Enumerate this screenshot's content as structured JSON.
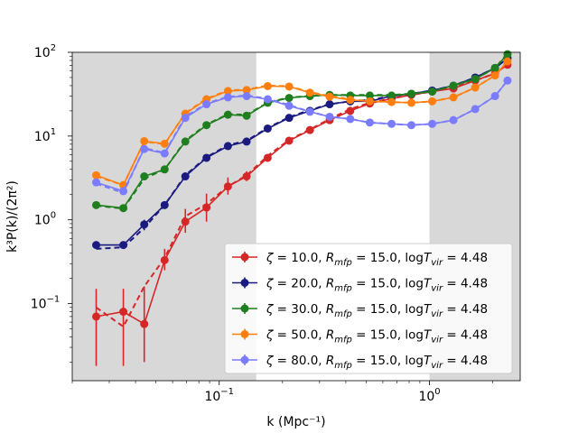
{
  "chart_data": {
    "type": "line",
    "title": "",
    "xlabel": "k (Mpc⁻¹)",
    "ylabel": "k³P(k)/(2π²)",
    "xscale": "log",
    "yscale": "log",
    "xlim": [
      0.02,
      2.7
    ],
    "ylim": [
      0.012,
      100
    ],
    "shaded_regions": [
      [
        0.02,
        0.15
      ],
      [
        1.0,
        2.7
      ]
    ],
    "x_ticks": [
      {
        "value": 0.1,
        "base": "10",
        "exp": "−1"
      },
      {
        "value": 1,
        "base": "10",
        "exp": "0"
      }
    ],
    "y_ticks": [
      {
        "value": 0.1,
        "base": "10",
        "exp": "−1"
      },
      {
        "value": 1,
        "base": "10",
        "exp": "0"
      },
      {
        "value": 10,
        "base": "10",
        "exp": "1"
      },
      {
        "value": 100,
        "base": "10",
        "exp": "2"
      }
    ],
    "x": [
      0.026,
      0.035,
      0.044,
      0.055,
      0.069,
      0.087,
      0.11,
      0.135,
      0.17,
      0.215,
      0.27,
      0.335,
      0.42,
      0.52,
      0.66,
      0.82,
      1.03,
      1.3,
      1.65,
      2.05,
      2.35
    ],
    "legend_location": "lower-right",
    "series": [
      {
        "label": "ζ = 10.0, R_mfp = 15.0, logT_vir = 4.48",
        "legend": {
          "zeta": "10.0",
          "rmfp": "15.0",
          "tvir": "4.48"
        },
        "color": "#d62728",
        "values": [
          0.07,
          0.08,
          0.057,
          0.33,
          0.95,
          1.4,
          2.5,
          3.3,
          5.5,
          8.8,
          11.8,
          15.5,
          20,
          24.5,
          28,
          31,
          34,
          37,
          46,
          56,
          71
        ],
        "dashed": [
          0.09,
          0.053,
          0.16,
          0.35,
          1.1,
          1.55,
          2.5,
          3.4,
          5.8,
          9.0,
          12.0,
          16,
          21,
          25,
          28,
          31,
          34,
          38,
          46,
          56,
          73
        ],
        "err_low": [
          0.018,
          0.018,
          0.02,
          0.25,
          0.7,
          0.95,
          2.0,
          2.9,
          5.2,
          8.5,
          11.5,
          15,
          19.5,
          24,
          27.5,
          30.5,
          33.5,
          36.5,
          45,
          55,
          70
        ],
        "err_high": [
          0.15,
          0.15,
          0.16,
          0.45,
          1.35,
          2.05,
          3.2,
          3.8,
          5.9,
          9.2,
          12.2,
          16,
          20.5,
          25,
          28.5,
          31.5,
          34.5,
          37.5,
          47,
          57,
          72
        ]
      },
      {
        "label": "ζ = 20.0, R_mfp = 15.0, logT_vir = 4.48",
        "legend": {
          "zeta": "20.0",
          "rmfp": "15.0",
          "tvir": "4.48"
        },
        "color": "#1a1a80",
        "values": [
          0.5,
          0.5,
          0.88,
          1.5,
          3.3,
          5.5,
          7.6,
          8.6,
          12.3,
          16.5,
          20,
          24,
          26,
          26,
          30,
          32,
          35,
          40,
          50,
          65,
          85
        ],
        "dashed": [
          0.45,
          0.47,
          0.8,
          1.5,
          3.4,
          5.6,
          7.8,
          8.8,
          12.5,
          16.8,
          20.5,
          24,
          26,
          27,
          30,
          32,
          35,
          40,
          50,
          65,
          85
        ],
        "err_low": [
          0.47,
          0.47,
          0.75,
          1.4,
          3.2,
          5.4,
          7.5,
          8.5,
          12.2,
          16.4,
          20,
          24,
          26,
          26,
          30,
          32,
          35,
          40,
          50,
          65,
          85
        ],
        "err_high": [
          0.53,
          0.53,
          1.0,
          1.6,
          3.4,
          5.6,
          7.7,
          8.7,
          12.4,
          16.6,
          20,
          24,
          26,
          26,
          30,
          32,
          35,
          40,
          50,
          65,
          85
        ]
      },
      {
        "label": "ζ = 30.0, R_mfp = 15.0, logT_vir = 4.48",
        "legend": {
          "zeta": "30.0",
          "rmfp": "15.0",
          "tvir": "4.48"
        },
        "color": "#1f7f1f",
        "values": [
          1.5,
          1.38,
          3.3,
          4.0,
          8.6,
          13.5,
          18.0,
          17.5,
          25,
          28.5,
          30,
          31,
          30.5,
          30.5,
          30.5,
          32,
          34,
          40,
          48,
          65,
          95
        ],
        "dashed": [
          1.48,
          1.36,
          3.1,
          4.0,
          8.8,
          13.8,
          18.2,
          18.0,
          25,
          29,
          30,
          31,
          31,
          31,
          31,
          32,
          34,
          40,
          48,
          65,
          97
        ],
        "err_low": [
          1.48,
          1.36,
          3.2,
          3.9,
          8.5,
          13.4,
          17.9,
          17.4,
          25,
          28.5,
          30,
          31,
          30.5,
          30.5,
          30.5,
          32,
          34,
          40,
          48,
          65,
          95
        ],
        "err_high": [
          1.52,
          1.4,
          3.4,
          4.1,
          8.7,
          13.6,
          18.1,
          17.6,
          25,
          28.5,
          30,
          31,
          30.5,
          30.5,
          30.5,
          32,
          34,
          40,
          48,
          65,
          95
        ]
      },
      {
        "label": "ζ = 50.0, R_mfp = 15.0, logT_vir = 4.48",
        "legend": {
          "zeta": "50.0",
          "rmfp": "15.0",
          "tvir": "4.48"
        },
        "color": "#ff7f0e",
        "values": [
          3.4,
          2.6,
          8.7,
          8.1,
          18.5,
          27.5,
          34.5,
          35.5,
          39.5,
          39,
          33,
          29.5,
          27,
          26,
          25.5,
          25,
          26,
          29,
          38,
          53,
          78
        ],
        "dashed": [
          3.3,
          2.6,
          8.6,
          8.0,
          18.8,
          28,
          35,
          36,
          40,
          39.5,
          33.5,
          30,
          27.5,
          26,
          25.5,
          25,
          26,
          29,
          38,
          53,
          78
        ],
        "err_low": [
          3.35,
          2.55,
          8.6,
          8.0,
          18.4,
          27.4,
          34.4,
          35.4,
          39.4,
          38.9,
          33,
          29.5,
          27,
          26,
          25.5,
          25,
          26,
          29,
          38,
          53,
          78
        ],
        "err_high": [
          3.45,
          2.65,
          8.8,
          8.2,
          18.6,
          27.6,
          34.6,
          35.6,
          39.6,
          39.1,
          33,
          29.5,
          27,
          26,
          25.5,
          25,
          26,
          29,
          38,
          53,
          78
        ]
      },
      {
        "label": "ζ = 80.0, R_mfp = 15.0, logT_vir = 4.48",
        "legend": {
          "zeta": "80.0",
          "rmfp": "15.0",
          "tvir": "4.48"
        },
        "color": "#7b7bff",
        "values": [
          2.8,
          2.2,
          7.0,
          6.2,
          16.5,
          24,
          29,
          30,
          27.5,
          23,
          19.5,
          17,
          16,
          14.5,
          14,
          13.5,
          14,
          15.5,
          21,
          30,
          46
        ],
        "dashed": [
          2.7,
          2.1,
          7.2,
          6.3,
          17,
          24.5,
          29.5,
          30.5,
          28,
          23.5,
          19.5,
          17,
          16,
          14.5,
          14,
          13.5,
          14,
          15.5,
          21,
          30,
          46
        ],
        "err_low": [
          2.75,
          2.15,
          6.9,
          6.1,
          16.4,
          23.9,
          28.9,
          29.9,
          27.4,
          22.9,
          19.5,
          17,
          16,
          14.5,
          14,
          13.5,
          14,
          15.5,
          21,
          30,
          46
        ],
        "err_high": [
          2.85,
          2.25,
          7.1,
          6.3,
          16.6,
          24.1,
          29.1,
          30.1,
          27.6,
          23.1,
          19.5,
          17,
          16,
          14.5,
          14,
          13.5,
          14,
          15.5,
          21,
          30,
          46
        ]
      }
    ]
  }
}
